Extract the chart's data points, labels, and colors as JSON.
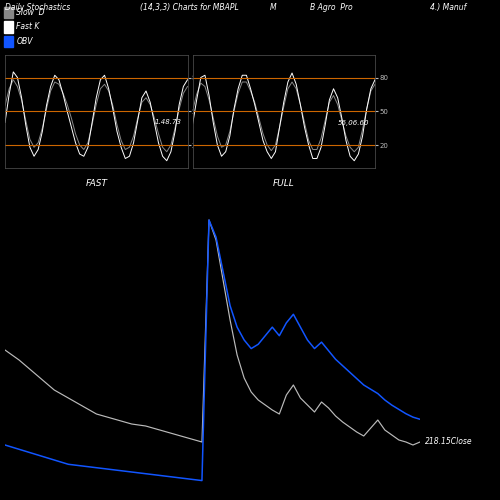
{
  "title_left": "Daily Stochastics",
  "title_center": "(14,3,3) Charts for MBAPL",
  "title_M": "M",
  "title_company": "B Agro  Pro",
  "title_right": "4.) Manuf",
  "legend_slow_d_label": "Slow  D",
  "legend_slow_d_color": "#888888",
  "legend_fast_k_label": "Fast K",
  "legend_fast_k_color": "#ffffff",
  "legend_obv_label": "OBV",
  "legend_obv_color": "#1155ff",
  "fast_label": "FAST",
  "full_label": "FULL",
  "fast_value": "1.48.73",
  "full_value": "56,06.60",
  "hline_color": "#cc6600",
  "bg_color": "#000000",
  "stoch_hlines": [
    20,
    50,
    80
  ],
  "fast_slow_D": [
    55,
    70,
    78,
    72,
    60,
    42,
    25,
    18,
    22,
    35,
    52,
    68,
    76,
    74,
    66,
    56,
    44,
    30,
    20,
    16,
    22,
    38,
    56,
    70,
    74,
    68,
    55,
    38,
    24,
    16,
    18,
    28,
    44,
    58,
    62,
    56,
    44,
    30,
    18,
    14,
    20,
    35,
    52,
    66,
    72
  ],
  "fast_fast_K": [
    40,
    65,
    85,
    80,
    62,
    38,
    18,
    10,
    16,
    32,
    55,
    72,
    82,
    78,
    65,
    50,
    36,
    22,
    12,
    10,
    18,
    40,
    62,
    78,
    82,
    70,
    52,
    32,
    18,
    8,
    10,
    22,
    42,
    62,
    68,
    58,
    40,
    22,
    10,
    6,
    14,
    32,
    56,
    72,
    78
  ],
  "full_slow_D": [
    50,
    65,
    75,
    72,
    60,
    44,
    28,
    18,
    20,
    32,
    50,
    66,
    76,
    76,
    68,
    58,
    44,
    30,
    20,
    15,
    20,
    36,
    54,
    70,
    76,
    70,
    56,
    40,
    24,
    16,
    16,
    26,
    42,
    58,
    64,
    56,
    42,
    28,
    18,
    14,
    18,
    34,
    52,
    68,
    74
  ],
  "full_fast_K": [
    38,
    60,
    80,
    82,
    64,
    40,
    20,
    10,
    14,
    28,
    52,
    70,
    82,
    82,
    70,
    56,
    40,
    24,
    14,
    8,
    14,
    36,
    58,
    76,
    84,
    74,
    56,
    36,
    20,
    8,
    8,
    18,
    38,
    60,
    70,
    62,
    44,
    24,
    10,
    6,
    12,
    28,
    52,
    70,
    78
  ],
  "main_close_label": "218.15Close",
  "main_color_close": "#bbbbbb",
  "main_color_obv": "#1155ff",
  "close_pts": [
    310,
    305,
    300,
    294,
    288,
    282,
    276,
    270,
    266,
    262,
    258,
    254,
    250,
    246,
    244,
    242,
    240,
    238,
    236,
    235,
    234,
    232,
    230,
    228,
    226,
    224,
    222,
    220,
    218,
    440,
    420,
    380,
    340,
    305,
    282,
    268,
    260,
    255,
    250,
    246,
    265,
    275,
    262,
    255,
    248,
    258,
    252,
    244,
    238,
    233,
    228,
    224,
    232,
    240,
    230,
    225,
    220,
    218,
    215,
    218
  ],
  "obv_pts": [
    155,
    150,
    145,
    140,
    135,
    130,
    125,
    120,
    115,
    110,
    108,
    106,
    104,
    102,
    100,
    98,
    96,
    94,
    92,
    90,
    88,
    86,
    84,
    82,
    80,
    78,
    76,
    74,
    72,
    680,
    640,
    560,
    480,
    430,
    400,
    380,
    390,
    410,
    430,
    410,
    440,
    460,
    430,
    400,
    380,
    395,
    375,
    355,
    340,
    325,
    310,
    295,
    285,
    275,
    260,
    248,
    238,
    228,
    220,
    215
  ],
  "close_ylim_lo": 170,
  "close_ylim_hi": 470,
  "obv_ylim_lo": 50,
  "obv_ylim_hi": 750
}
